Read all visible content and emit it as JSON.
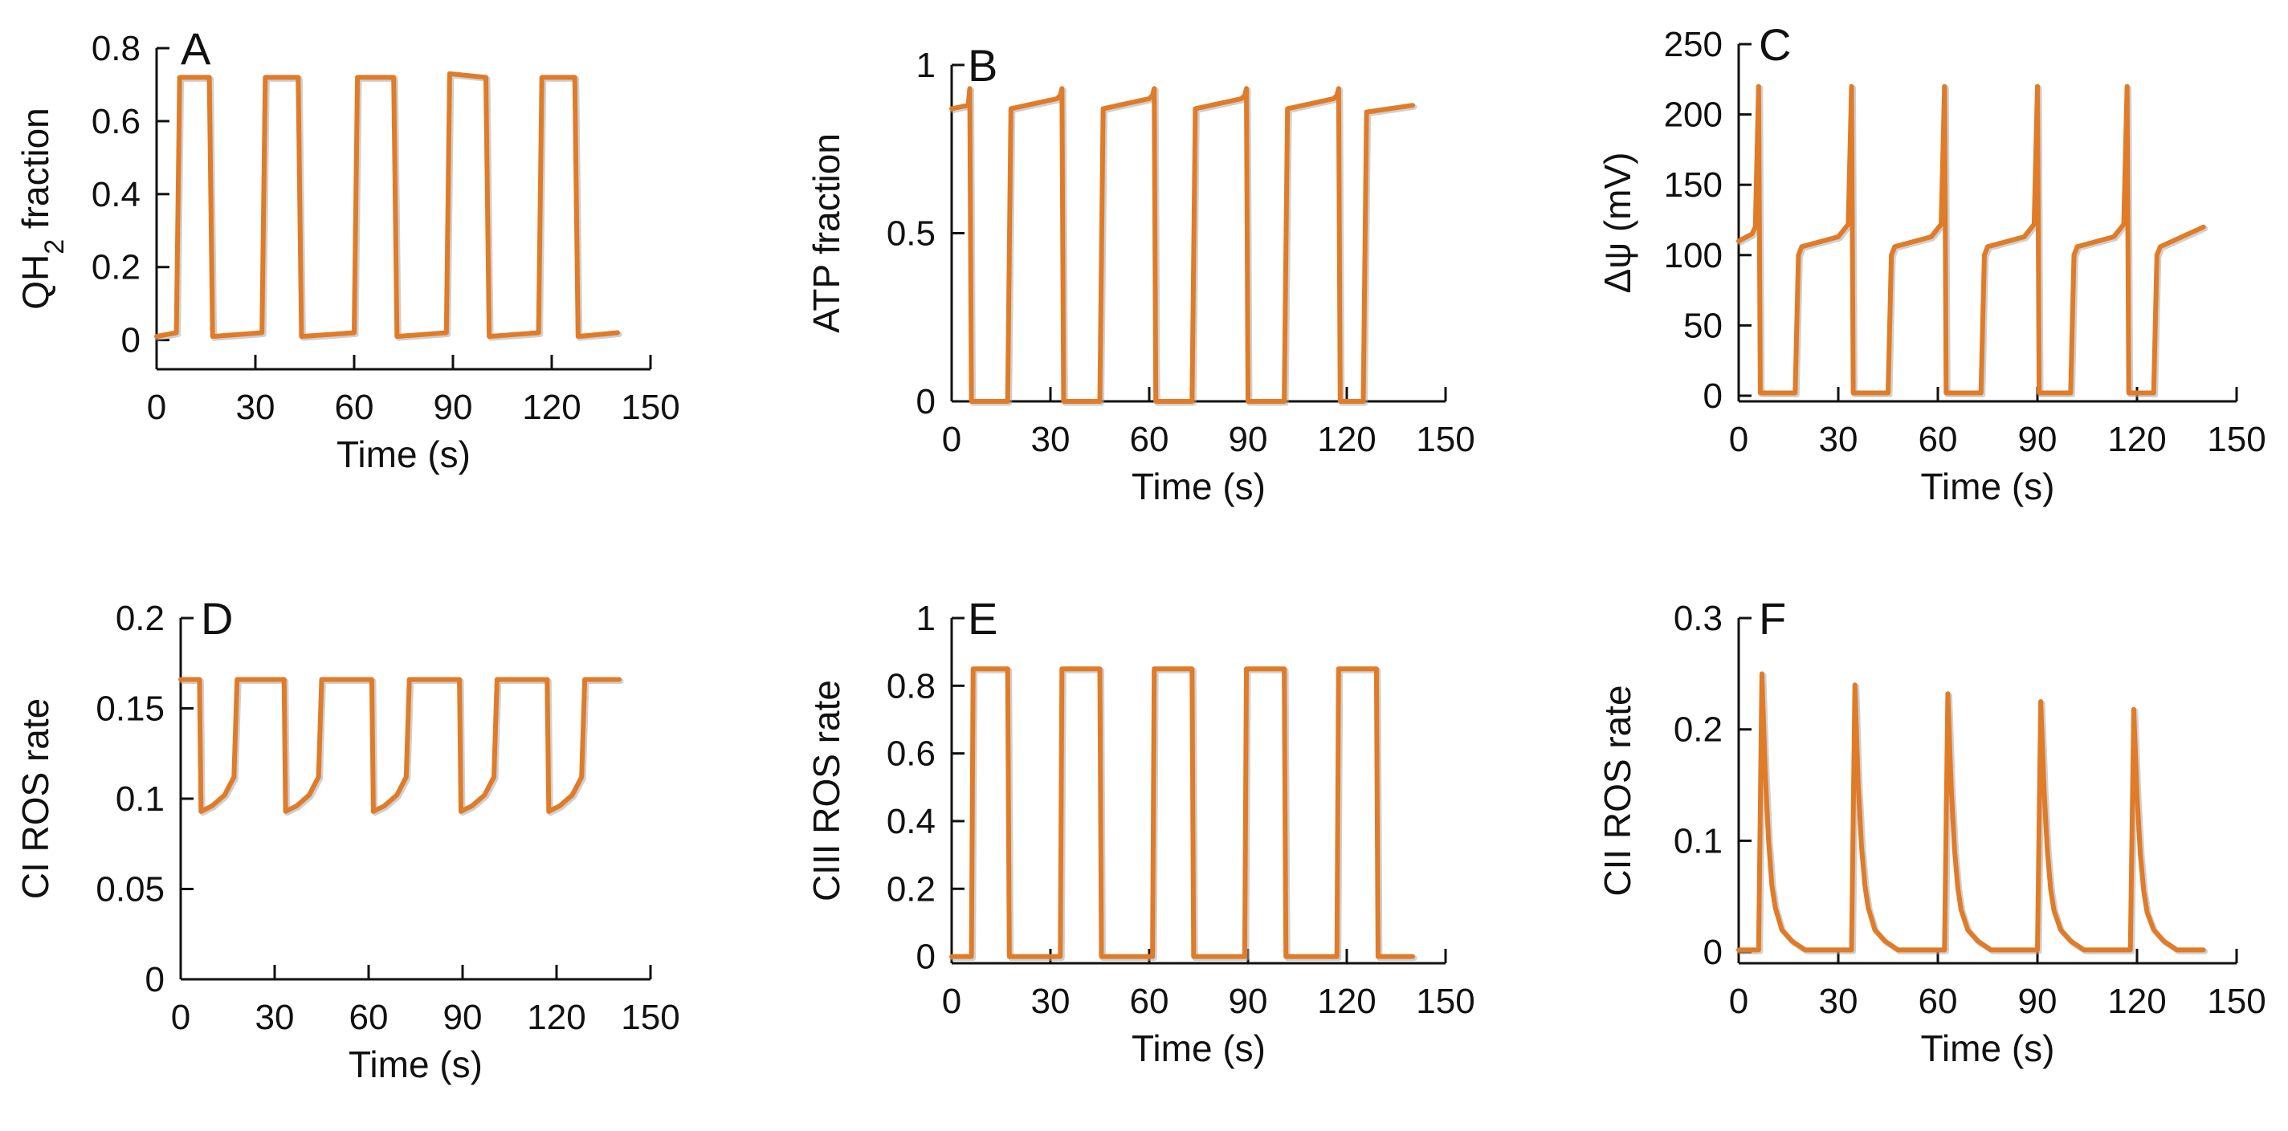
{
  "figure": {
    "line_color": "#E07B28",
    "shadow_color": "#A9A9A9"
  },
  "chart_data": [
    {
      "id": "A",
      "panel_label": "A",
      "type": "line",
      "title": "",
      "xlabel": "Time (s)",
      "ylabel": "QH2 fraction",
      "ylabel_parts": {
        "main": "QH",
        "sub": "2",
        "rest": " fraction"
      },
      "xlim": [
        0,
        150
      ],
      "ylim": [
        -0.08,
        0.8
      ],
      "xticks": [
        0,
        30,
        60,
        90,
        120,
        150
      ],
      "yticks": [
        0,
        0.2,
        0.4,
        0.6,
        0.8
      ],
      "grid": false,
      "legend": "none",
      "series": [
        {
          "name": "QH2 fraction",
          "x": [
            0,
            6,
            7,
            16,
            17,
            32,
            33,
            43,
            44,
            60,
            61,
            72,
            73,
            88,
            89,
            100,
            101,
            116,
            117,
            127,
            128,
            140
          ],
          "y": [
            0.01,
            0.02,
            0.72,
            0.72,
            0.01,
            0.02,
            0.72,
            0.72,
            0.01,
            0.02,
            0.72,
            0.72,
            0.01,
            0.02,
            0.73,
            0.72,
            0.01,
            0.02,
            0.72,
            0.72,
            0.01,
            0.02
          ]
        }
      ]
    },
    {
      "id": "B",
      "panel_label": "B",
      "type": "line",
      "title": "",
      "xlabel": "Time (s)",
      "ylabel": "ATP fraction",
      "xlim": [
        0,
        150
      ],
      "ylim": [
        0,
        1.05
      ],
      "xticks": [
        0,
        30,
        60,
        90,
        120,
        150
      ],
      "yticks": [
        0,
        0.5,
        1
      ],
      "grid": false,
      "legend": "none",
      "series": [
        {
          "name": "ATP fraction",
          "x": [
            0,
            5,
            5.5,
            6,
            17,
            18,
            32,
            33,
            33.5,
            34,
            45,
            46,
            60,
            61,
            61.5,
            62,
            73,
            74,
            88,
            89,
            89.5,
            90,
            101,
            102,
            116,
            117,
            117.5,
            118,
            125,
            126,
            140
          ],
          "y": [
            0.87,
            0.88,
            0.93,
            0,
            0,
            0.87,
            0.9,
            0.91,
            0.93,
            0,
            0,
            0.87,
            0.9,
            0.91,
            0.93,
            0,
            0,
            0.87,
            0.9,
            0.91,
            0.93,
            0,
            0,
            0.87,
            0.9,
            0.91,
            0.93,
            0,
            0,
            0.86,
            0.88
          ]
        }
      ]
    },
    {
      "id": "C",
      "panel_label": "C",
      "type": "line",
      "title": "",
      "xlabel": "Time (s)",
      "ylabel": "Δψ (mV)",
      "xlim": [
        0,
        150
      ],
      "ylim": [
        -4,
        250
      ],
      "xticks": [
        0,
        30,
        60,
        90,
        120,
        150
      ],
      "yticks": [
        0,
        50,
        100,
        150,
        200,
        250
      ],
      "grid": false,
      "legend": "none",
      "series": [
        {
          "name": "Δψ (mV)",
          "x": [
            0,
            4,
            5,
            6,
            6.5,
            17,
            18,
            19,
            30,
            33,
            34,
            34.5,
            45,
            46,
            47,
            58,
            61,
            62,
            62.5,
            73,
            74,
            75,
            86,
            89,
            90,
            90.5,
            100,
            101,
            102,
            113,
            116,
            117,
            117.5,
            125,
            126,
            127,
            140
          ],
          "y": [
            110,
            115,
            120,
            220,
            2,
            2,
            100,
            106,
            113,
            122,
            220,
            2,
            2,
            100,
            106,
            113,
            122,
            220,
            2,
            2,
            100,
            106,
            113,
            122,
            220,
            2,
            2,
            100,
            106,
            113,
            122,
            220,
            2,
            2,
            100,
            106,
            120
          ]
        }
      ]
    },
    {
      "id": "D",
      "panel_label": "D",
      "type": "line",
      "title": "",
      "xlabel": "Time (s)",
      "ylabel": "CI ROS rate",
      "xlim": [
        0,
        150
      ],
      "ylim": [
        0,
        0.2
      ],
      "xticks": [
        0,
        30,
        60,
        90,
        120,
        150
      ],
      "yticks": [
        0,
        0.05,
        0.1,
        0.15,
        0.2
      ],
      "grid": false,
      "legend": "none",
      "series": [
        {
          "name": "CI ROS rate",
          "x": [
            0,
            6,
            6.5,
            10,
            14,
            17,
            18,
            33,
            33.5,
            37,
            41,
            44,
            45,
            61,
            61.5,
            65,
            69,
            72,
            73,
            89,
            89.5,
            93,
            97,
            100,
            101,
            117,
            117.5,
            121,
            125,
            128,
            129,
            140
          ],
          "y": [
            0.166,
            0.166,
            0.093,
            0.096,
            0.102,
            0.112,
            0.166,
            0.166,
            0.093,
            0.096,
            0.102,
            0.112,
            0.166,
            0.166,
            0.093,
            0.096,
            0.102,
            0.112,
            0.166,
            0.166,
            0.093,
            0.096,
            0.102,
            0.112,
            0.166,
            0.166,
            0.093,
            0.096,
            0.102,
            0.112,
            0.166,
            0.166
          ]
        }
      ]
    },
    {
      "id": "E",
      "panel_label": "E",
      "type": "line",
      "title": "",
      "xlabel": "Time (s)",
      "ylabel": "CIII ROS rate",
      "xlim": [
        0,
        150
      ],
      "ylim": [
        -0.02,
        1
      ],
      "xticks": [
        0,
        30,
        60,
        90,
        120,
        150
      ],
      "yticks": [
        0,
        0.2,
        0.4,
        0.6,
        0.8,
        1
      ],
      "grid": false,
      "legend": "none",
      "series": [
        {
          "name": "CIII ROS rate",
          "x": [
            0,
            6,
            6.5,
            17,
            17.5,
            33,
            33.5,
            45,
            45.5,
            61,
            61.5,
            73,
            73.5,
            89,
            89.5,
            101,
            101.5,
            117,
            117.5,
            129,
            129.5,
            140
          ],
          "y": [
            0,
            0,
            0.85,
            0.85,
            0,
            0,
            0.85,
            0.85,
            0,
            0,
            0.85,
            0.85,
            0,
            0,
            0.85,
            0.85,
            0,
            0,
            0.85,
            0.85,
            0,
            0
          ]
        }
      ]
    },
    {
      "id": "F",
      "panel_label": "F",
      "type": "line",
      "title": "",
      "xlabel": "Time (s)",
      "ylabel": "CII ROS rate",
      "xlim": [
        0,
        150
      ],
      "ylim": [
        -0.01,
        0.3
      ],
      "xticks": [
        0,
        30,
        60,
        90,
        120,
        150
      ],
      "yticks": [
        0,
        0.1,
        0.2,
        0.3
      ],
      "grid": false,
      "legend": "none",
      "series": [
        {
          "name": "CII ROS rate",
          "x": [
            0,
            6,
            7,
            8,
            9,
            10,
            11,
            13,
            16,
            20,
            34,
            35,
            36,
            37,
            38,
            39,
            41,
            44,
            48,
            62,
            63,
            64,
            65,
            66,
            67,
            69,
            72,
            76,
            90,
            91,
            92,
            93,
            94,
            95,
            97,
            100,
            104,
            118,
            119,
            120,
            121,
            122,
            123,
            125,
            128,
            132,
            140
          ],
          "y": [
            0.002,
            0.002,
            0.25,
            0.16,
            0.1,
            0.06,
            0.04,
            0.02,
            0.01,
            0.002,
            0.002,
            0.24,
            0.15,
            0.095,
            0.06,
            0.04,
            0.02,
            0.01,
            0.002,
            0.002,
            0.232,
            0.15,
            0.092,
            0.058,
            0.038,
            0.02,
            0.01,
            0.002,
            0.002,
            0.225,
            0.145,
            0.09,
            0.056,
            0.037,
            0.02,
            0.01,
            0.002,
            0.002,
            0.218,
            0.14,
            0.088,
            0.055,
            0.036,
            0.02,
            0.01,
            0.002,
            0.002
          ]
        }
      ]
    }
  ]
}
